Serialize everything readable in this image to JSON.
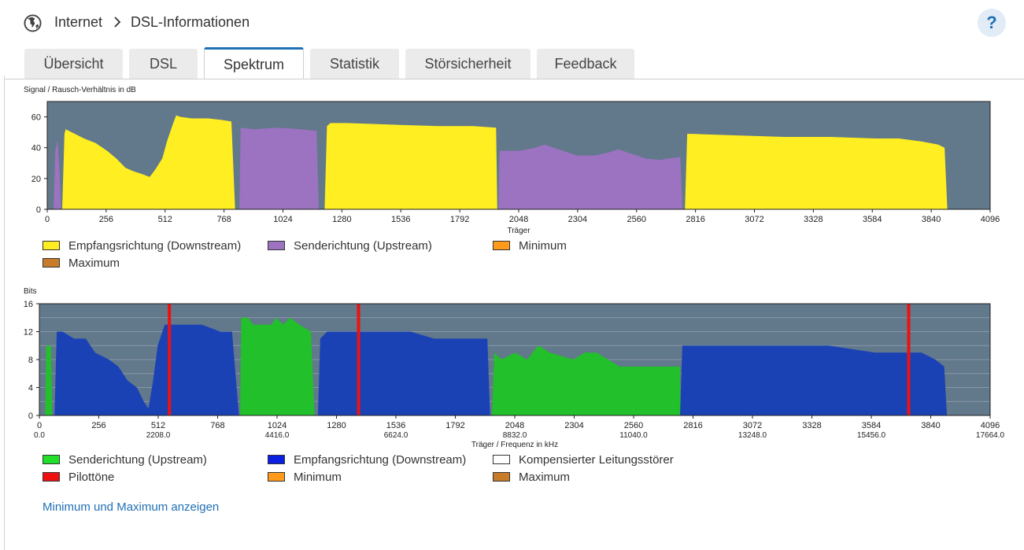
{
  "header": {
    "breadcrumb": [
      "Internet",
      "DSL-Informationen"
    ],
    "help_label": "?"
  },
  "tabs": [
    {
      "label": "Übersicht",
      "active": false
    },
    {
      "label": "DSL",
      "active": false
    },
    {
      "label": "Spektrum",
      "active": true
    },
    {
      "label": "Statistik",
      "active": false
    },
    {
      "label": "Störsicherheit",
      "active": false
    },
    {
      "label": "Feedback",
      "active": false
    }
  ],
  "chart1": {
    "title": "Signal / Rausch-Verhältnis in dB",
    "legend": [
      {
        "label": "Empfangsrichtung (Downstream)",
        "color": "#ffee22"
      },
      {
        "label": "Senderichtung (Upstream)",
        "color": "#9b73c0"
      },
      {
        "label": "Minimum",
        "color": "#ff9a1a"
      },
      {
        "label": "Maximum",
        "color": "#c87c2a"
      }
    ]
  },
  "chart2": {
    "title": "Bits",
    "legend": [
      {
        "label": "Senderichtung (Upstream)",
        "color": "#22e02a"
      },
      {
        "label": "Empfangsrichtung (Downstream)",
        "color": "#0a1fe0"
      },
      {
        "label": "Kompensierter Leitungsstörer",
        "color": "#ffffff"
      },
      {
        "label": "Pilottöne",
        "color": "#ee1111"
      },
      {
        "label": "Minimum",
        "color": "#ff9a1a"
      },
      {
        "label": "Maximum",
        "color": "#c87c2a"
      }
    ]
  },
  "link_label": "Minimum und Maximum anzeigen",
  "chart_data": [
    {
      "type": "area",
      "title": "Signal / Rausch-Verhältnis in dB",
      "xlabel": "Träger",
      "ylabel": "",
      "xlim": [
        0,
        4096
      ],
      "ylim": [
        0,
        70
      ],
      "xticks": [
        0,
        256,
        512,
        768,
        1024,
        1280,
        1536,
        1792,
        2048,
        2304,
        2560,
        2816,
        3072,
        3328,
        3584,
        3840,
        4096
      ],
      "yticks": [
        0,
        20,
        40,
        60
      ],
      "grid": false,
      "legend_position": "bottom",
      "background": "#62788b",
      "series": [
        {
          "name": "Empfangsrichtung (Downstream)",
          "color": "#ffee22",
          "segments": [
            [
              [
                65,
                0
              ],
              [
                75,
                49
              ],
              [
                80,
                52
              ],
              [
                120,
                49
              ],
              [
                160,
                46
              ],
              [
                210,
                43
              ],
              [
                260,
                38
              ],
              [
                300,
                33
              ],
              [
                340,
                27
              ],
              [
                370,
                25
              ],
              [
                410,
                23
              ],
              [
                445,
                21
              ],
              [
                470,
                26
              ],
              [
                500,
                33
              ],
              [
                520,
                44
              ],
              [
                545,
                55
              ],
              [
                560,
                61
              ],
              [
                580,
                60
              ],
              [
                630,
                59
              ],
              [
                700,
                59
              ],
              [
                760,
                58
              ],
              [
                800,
                57
              ],
              [
                816,
                0
              ]
            ],
            [
              [
                1205,
                0
              ],
              [
                1215,
                54
              ],
              [
                1230,
                56
              ],
              [
                1300,
                56
              ],
              [
                1500,
                55
              ],
              [
                1700,
                54
              ],
              [
                1850,
                54
              ],
              [
                1950,
                53
              ],
              [
                1955,
                0
              ]
            ],
            [
              [
                2770,
                0
              ],
              [
                2780,
                49
              ],
              [
                2800,
                49
              ],
              [
                3000,
                48
              ],
              [
                3200,
                47
              ],
              [
                3400,
                47
              ],
              [
                3600,
                46
              ],
              [
                3700,
                46
              ],
              [
                3800,
                44
              ],
              [
                3870,
                42
              ],
              [
                3898,
                40
              ],
              [
                3910,
                0
              ]
            ]
          ]
        },
        {
          "name": "Senderichtung (Upstream)",
          "color": "#9b73c0",
          "segments": [
            [
              [
                28,
                0
              ],
              [
                35,
                38
              ],
              [
                45,
                45
              ],
              [
                55,
                20
              ],
              [
                60,
                0
              ]
            ],
            [
              [
                835,
                0
              ],
              [
                840,
                53
              ],
              [
                900,
                52
              ],
              [
                1000,
                53
              ],
              [
                1100,
                52
              ],
              [
                1170,
                51
              ],
              [
                1180,
                0
              ]
            ],
            [
              [
                1960,
                0
              ],
              [
                1965,
                38
              ],
              [
                2050,
                38
              ],
              [
                2120,
                40
              ],
              [
                2160,
                42
              ],
              [
                2200,
                40
              ],
              [
                2260,
                37
              ],
              [
                2300,
                35
              ],
              [
                2380,
                35
              ],
              [
                2440,
                37
              ],
              [
                2480,
                39
              ],
              [
                2520,
                37
              ],
              [
                2560,
                35
              ],
              [
                2600,
                33
              ],
              [
                2660,
                32
              ],
              [
                2700,
                33
              ],
              [
                2750,
                34
              ],
              [
                2760,
                0
              ]
            ]
          ]
        }
      ]
    },
    {
      "type": "area",
      "title": "Bits",
      "xlabel": "Träger / Frequenz in kHz",
      "ylabel": "",
      "xlim": [
        0,
        4096
      ],
      "ylim": [
        0,
        16
      ],
      "xticks": [
        0,
        256,
        512,
        768,
        1024,
        1280,
        1536,
        1792,
        2048,
        2304,
        2560,
        2816,
        3072,
        3328,
        3584,
        3840,
        4096
      ],
      "x2ticks": [
        {
          "x": 0,
          "label": "0.0"
        },
        {
          "x": 512,
          "label": "2208.0"
        },
        {
          "x": 1024,
          "label": "4416.0"
        },
        {
          "x": 1536,
          "label": "6624.0"
        },
        {
          "x": 2048,
          "label": "8832.0"
        },
        {
          "x": 2560,
          "label": "11040.0"
        },
        {
          "x": 3072,
          "label": "13248.0"
        },
        {
          "x": 3584,
          "label": "15456.0"
        },
        {
          "x": 4096,
          "label": "17664.0"
        }
      ],
      "yticks": [
        0,
        4,
        8,
        12,
        16
      ],
      "grid": true,
      "legend_position": "bottom",
      "background": "#62788b",
      "series": [
        {
          "name": "Senderichtung (Upstream)",
          "color": "#22c02a",
          "segments": [
            [
              [
                25,
                0
              ],
              [
                30,
                10
              ],
              [
                50,
                10
              ],
              [
                55,
                0
              ]
            ],
            [
              [
                865,
                0
              ],
              [
                870,
                14
              ],
              [
                900,
                14
              ],
              [
                920,
                13
              ],
              [
                1000,
                13
              ],
              [
                1020,
                14
              ],
              [
                1050,
                13
              ],
              [
                1080,
                14
              ],
              [
                1120,
                13
              ],
              [
                1170,
                12
              ],
              [
                1185,
                0
              ]
            ],
            [
              [
                1950,
                0
              ],
              [
                1960,
                9
              ],
              [
                1990,
                8
              ],
              [
                2050,
                9
              ],
              [
                2100,
                8
              ],
              [
                2150,
                10
              ],
              [
                2200,
                9
              ],
              [
                2300,
                8
              ],
              [
                2350,
                9
              ],
              [
                2400,
                9
              ],
              [
                2450,
                8
              ],
              [
                2500,
                7
              ],
              [
                2600,
                7
              ],
              [
                2760,
                7
              ],
              [
                2762,
                0
              ]
            ]
          ]
        },
        {
          "name": "Empfangsrichtung (Downstream)",
          "color": "#1a42b5",
          "segments": [
            [
              [
                65,
                0
              ],
              [
                75,
                12
              ],
              [
                100,
                12
              ],
              [
                150,
                11
              ],
              [
                200,
                11
              ],
              [
                240,
                9
              ],
              [
                300,
                8
              ],
              [
                340,
                7
              ],
              [
                380,
                5
              ],
              [
                420,
                4
              ],
              [
                450,
                2
              ],
              [
                470,
                1
              ],
              [
                490,
                5
              ],
              [
                510,
                10
              ],
              [
                540,
                13
              ],
              [
                600,
                13
              ],
              [
                700,
                13
              ],
              [
                780,
                12
              ],
              [
                830,
                12
              ],
              [
                860,
                0
              ]
            ],
            [
              [
                1200,
                0
              ],
              [
                1210,
                11
              ],
              [
                1240,
                12
              ],
              [
                1400,
                12
              ],
              [
                1600,
                12
              ],
              [
                1700,
                11
              ],
              [
                1800,
                11
              ],
              [
                1930,
                11
              ],
              [
                1942,
                0
              ]
            ],
            [
              [
                2760,
                0
              ],
              [
                2770,
                10
              ],
              [
                2900,
                10
              ],
              [
                3200,
                10
              ],
              [
                3400,
                10
              ],
              [
                3600,
                9
              ],
              [
                3800,
                9
              ],
              [
                3860,
                8
              ],
              [
                3898,
                7
              ],
              [
                3910,
                0
              ]
            ]
          ]
        },
        {
          "name": "Pilottöne",
          "color": "#ee1111",
          "type": "vline",
          "x": [
            560,
            1375,
            3745
          ]
        }
      ]
    }
  ]
}
